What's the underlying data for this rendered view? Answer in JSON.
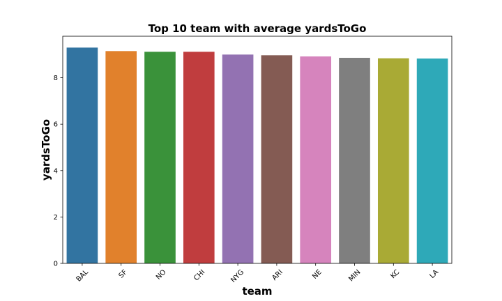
{
  "chart_data": {
    "type": "bar",
    "title": "Top 10 team with average yardsToGo",
    "xlabel": "team",
    "ylabel": "yardsToGo",
    "categories": [
      "BAL",
      "SF",
      "NO",
      "CHI",
      "NYG",
      "ARI",
      "NE",
      "MIN",
      "KC",
      "LA"
    ],
    "values": [
      9.3,
      9.15,
      9.12,
      9.12,
      9.0,
      8.97,
      8.92,
      8.86,
      8.84,
      8.83
    ],
    "colors": [
      "#3274a1",
      "#e1812c",
      "#3a923a",
      "#c03d3e",
      "#9372b2",
      "#845b53",
      "#d684bd",
      "#7f7f7f",
      "#a9aa35",
      "#2ea9b8"
    ],
    "ylim": [
      0,
      9.79
    ],
    "yticks": [
      0,
      2,
      4,
      6,
      8
    ],
    "grid": false,
    "legend": "none"
  }
}
